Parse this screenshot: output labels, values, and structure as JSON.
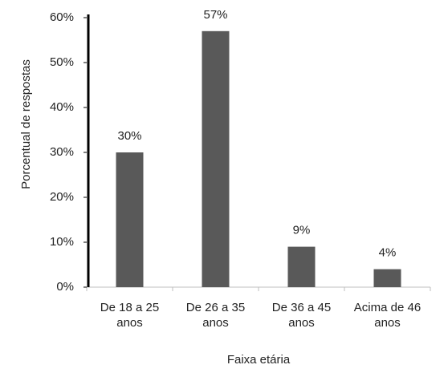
{
  "chart_data": {
    "type": "bar",
    "categories": [
      "De 18 a 25 anos",
      "De 26 a 35 anos",
      "De 36 a 45 anos",
      "Acima de 46 anos"
    ],
    "values": [
      30,
      57,
      9,
      4
    ],
    "value_labels": [
      "30%",
      "57%",
      "9%",
      "4%"
    ],
    "color": "#595959",
    "xlabel": "Faixa etária",
    "ylabel": "Porcentual de respostas",
    "ylim": [
      0,
      60
    ],
    "yticks": [
      {
        "value": 0,
        "label": "0%"
      },
      {
        "value": 10,
        "label": "10%"
      },
      {
        "value": 20,
        "label": "20%"
      },
      {
        "value": 30,
        "label": "30%"
      },
      {
        "value": 40,
        "label": "40%"
      },
      {
        "value": 50,
        "label": "50%"
      },
      {
        "value": 60,
        "label": "60%"
      }
    ],
    "grid": false
  }
}
